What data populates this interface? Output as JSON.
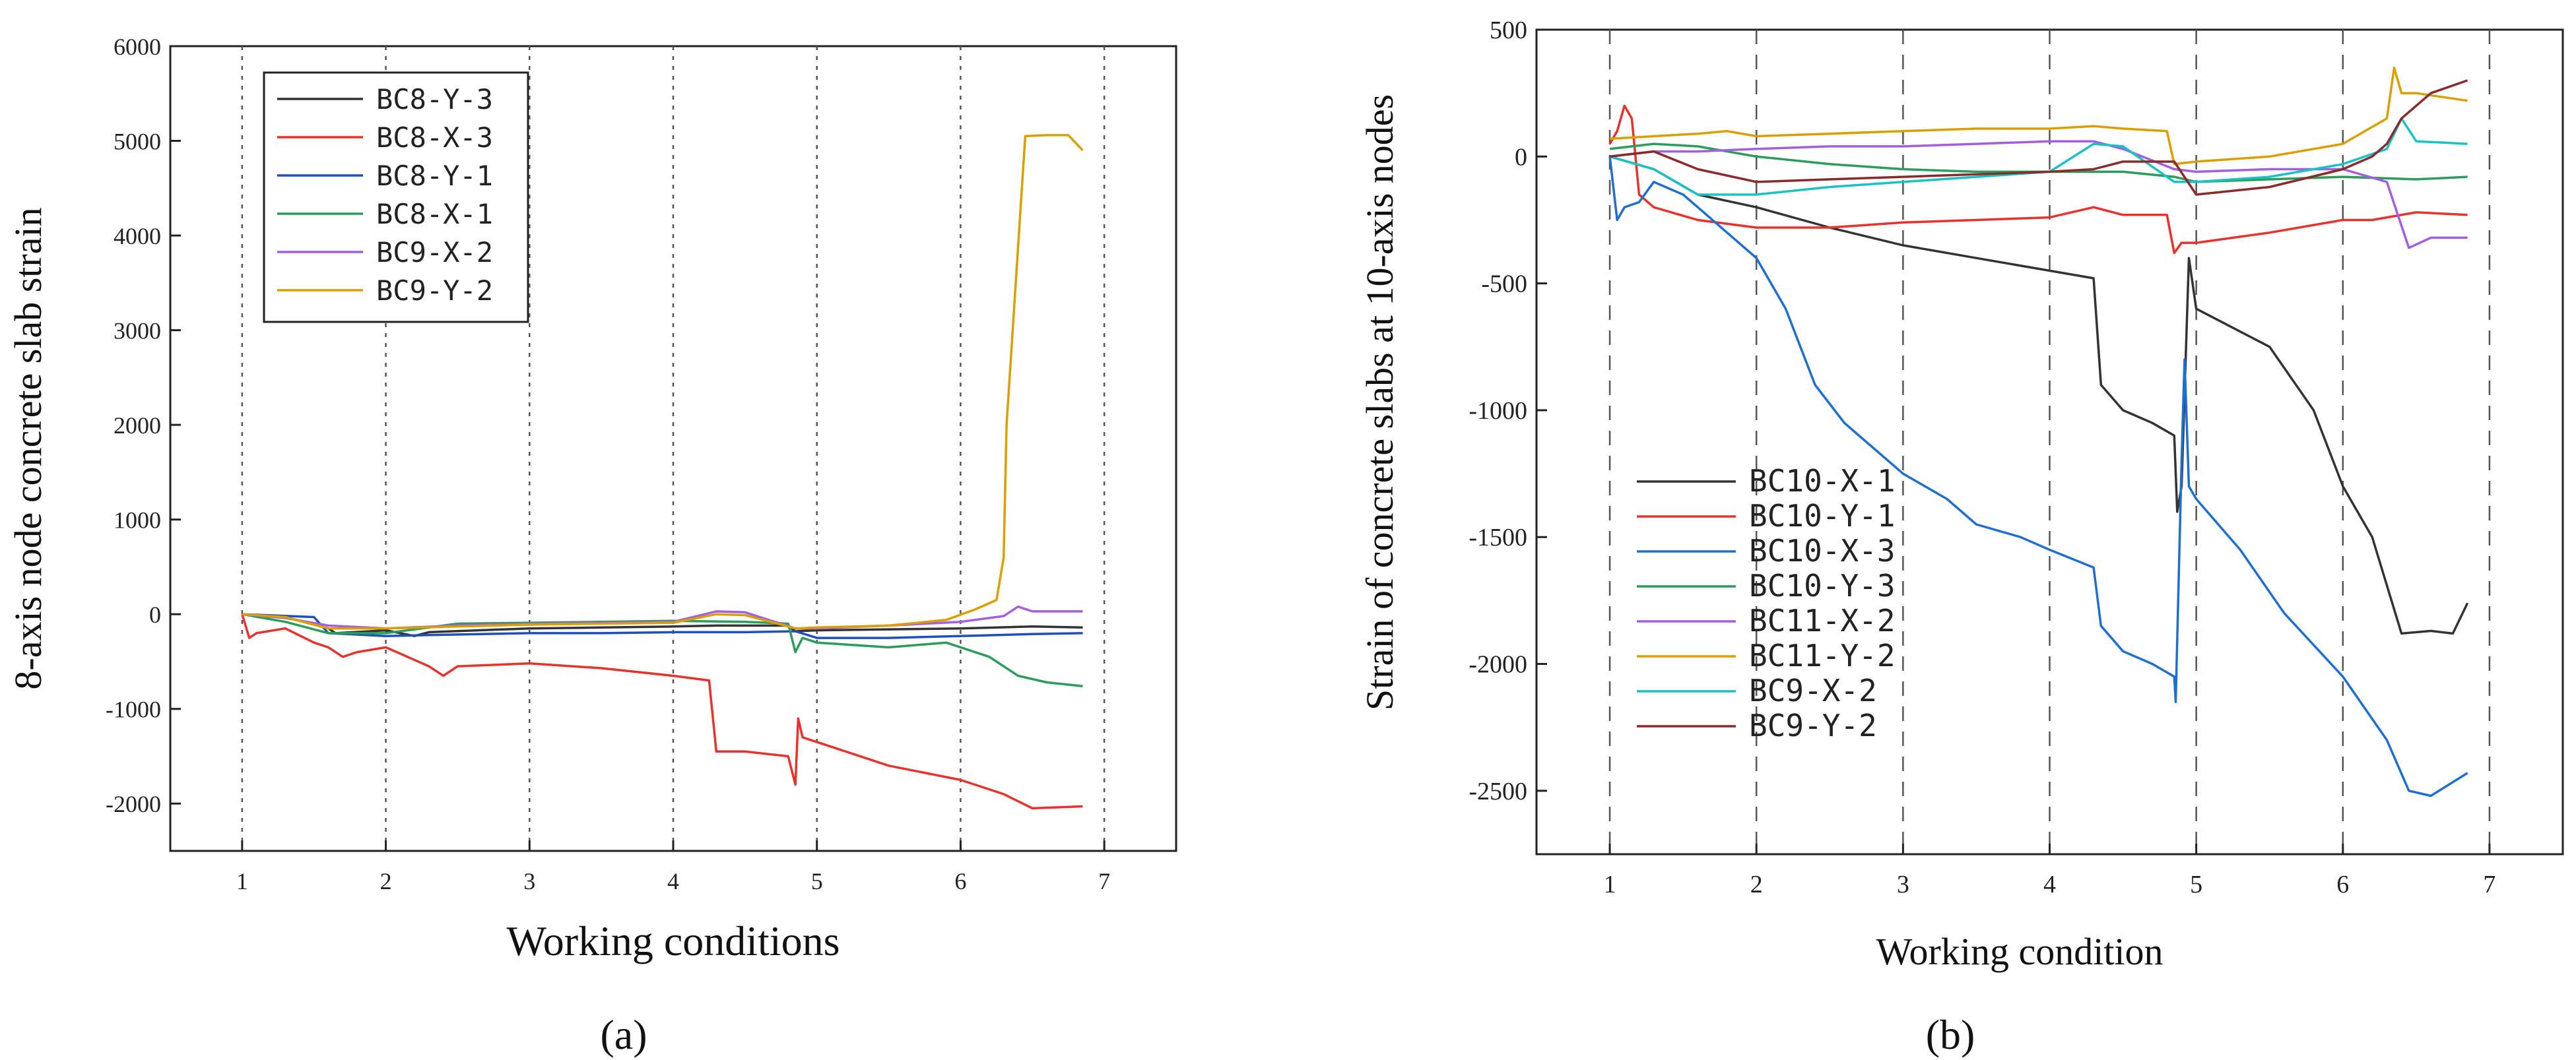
{
  "figure": {
    "labels": [
      "(a)",
      "(b)"
    ]
  },
  "chart_data": [
    {
      "type": "line",
      "panel_label": "(a)",
      "title": "",
      "xlabel": "Working conditions",
      "ylabel": "8-axis node concrete slab strain",
      "xlim": [
        0.5,
        7.5
      ],
      "ylim": [
        -2500,
        6000
      ],
      "xticks": [
        1,
        2,
        3,
        4,
        5,
        6,
        7
      ],
      "yticks": [
        -2000,
        -1000,
        0,
        1000,
        2000,
        3000,
        4000,
        5000,
        6000
      ],
      "x_grid": "dotted vertical lines at x ticks",
      "legend_position": "top-left",
      "series": [
        {
          "name": "BC8-Y-3",
          "color": "#333333",
          "x": [
            1,
            1.3,
            1.6,
            1.65,
            2,
            2.2,
            2.3,
            3,
            3.5,
            4,
            4.3,
            4.8,
            4.85,
            5,
            5.5,
            6,
            6.5,
            6.85
          ],
          "y": [
            0,
            -30,
            -150,
            -200,
            -170,
            -230,
            -190,
            -150,
            -140,
            -130,
            -120,
            -120,
            -180,
            -170,
            -160,
            -150,
            -130,
            -140
          ]
        },
        {
          "name": "BC8-X-3",
          "color": "#e8322b",
          "x": [
            1,
            1.05,
            1.1,
            1.3,
            1.5,
            1.6,
            1.7,
            1.8,
            2,
            2.3,
            2.4,
            2.5,
            3,
            3.5,
            4,
            4.25,
            4.3,
            4.5,
            4.8,
            4.85,
            4.87,
            4.9,
            5,
            5.5,
            6,
            6.3,
            6.5,
            6.85
          ],
          "y": [
            0,
            -250,
            -200,
            -150,
            -300,
            -350,
            -450,
            -400,
            -350,
            -550,
            -650,
            -550,
            -520,
            -570,
            -650,
            -700,
            -1450,
            -1450,
            -1500,
            -1800,
            -1100,
            -1300,
            -1350,
            -1600,
            -1750,
            -1900,
            -2050,
            -2030
          ]
        },
        {
          "name": "BC8-Y-1",
          "color": "#1f4fbf",
          "x": [
            1,
            1.5,
            1.6,
            2,
            2.3,
            3,
            3.5,
            4,
            4.5,
            4.85,
            5,
            5.5,
            6,
            6.5,
            6.85
          ],
          "y": [
            0,
            -30,
            -200,
            -230,
            -220,
            -200,
            -200,
            -190,
            -190,
            -180,
            -250,
            -250,
            -230,
            -210,
            -200
          ]
        },
        {
          "name": "BC8-X-1",
          "color": "#2a9d5a",
          "x": [
            1,
            1.3,
            1.6,
            2,
            2.5,
            3,
            3.5,
            4,
            4.5,
            4.8,
            4.85,
            4.9,
            5,
            5.5,
            5.9,
            6.2,
            6.4,
            6.6,
            6.85
          ],
          "y": [
            0,
            -80,
            -200,
            -200,
            -100,
            -90,
            -80,
            -70,
            -80,
            -100,
            -400,
            -250,
            -300,
            -350,
            -300,
            -450,
            -650,
            -720,
            -760
          ]
        },
        {
          "name": "BC9-X-2",
          "color": "#a35fe0",
          "x": [
            1,
            1.3,
            1.6,
            2,
            2.5,
            3,
            3.5,
            4,
            4.3,
            4.5,
            4.85,
            5,
            5.5,
            6,
            6.3,
            6.4,
            6.5,
            6.85
          ],
          "y": [
            0,
            -40,
            -120,
            -150,
            -120,
            -100,
            -90,
            -80,
            30,
            20,
            -150,
            -150,
            -120,
            -80,
            -20,
            80,
            30,
            30
          ]
        },
        {
          "name": "BC9-Y-2",
          "color": "#d9a000",
          "x": [
            1,
            1.3,
            1.6,
            2,
            2.5,
            3,
            3.5,
            4,
            4.3,
            4.5,
            4.85,
            5,
            5.5,
            5.9,
            6.1,
            6.25,
            6.3,
            6.32,
            6.45,
            6.6,
            6.75,
            6.85
          ],
          "y": [
            0,
            -30,
            -150,
            -150,
            -130,
            -110,
            -100,
            -90,
            0,
            -10,
            -150,
            -140,
            -120,
            -60,
            50,
            150,
            600,
            2000,
            5050,
            5060,
            5060,
            4900
          ]
        }
      ]
    },
    {
      "type": "line",
      "panel_label": "(b)",
      "title": "",
      "xlabel": "Working condition",
      "ylabel": "Strain of concrete slabs at 10-axis nodes",
      "xlim": [
        0.5,
        7.5
      ],
      "ylim": [
        -2750,
        500
      ],
      "xticks": [
        1,
        2,
        3,
        4,
        5,
        6,
        7
      ],
      "yticks": [
        -2500,
        -2000,
        -1500,
        -1000,
        -500,
        0,
        500
      ],
      "x_grid": "dashed vertical lines at x ticks",
      "legend_position": "bottom-left",
      "series": [
        {
          "name": "BC10-X-1",
          "color": "#333333",
          "x": [
            1,
            1.3,
            1.6,
            2,
            2.5,
            3,
            3.5,
            4,
            4.3,
            4.35,
            4.5,
            4.7,
            4.85,
            4.87,
            4.9,
            4.95,
            5,
            5.5,
            5.8,
            6,
            6.2,
            6.4,
            6.6,
            6.75,
            6.85
          ],
          "y": [
            0,
            -50,
            -150,
            -200,
            -280,
            -350,
            -400,
            -450,
            -480,
            -900,
            -1000,
            -1050,
            -1100,
            -1400,
            -1300,
            -400,
            -600,
            -750,
            -1000,
            -1300,
            -1500,
            -1880,
            -1870,
            -1880,
            -1760
          ]
        },
        {
          "name": "BC10-Y-1",
          "color": "#e8322b",
          "x": [
            1,
            1.05,
            1.1,
            1.15,
            1.2,
            1.3,
            1.6,
            2,
            2.5,
            3,
            3.5,
            4,
            4.3,
            4.5,
            4.8,
            4.85,
            4.9,
            5,
            5.5,
            6,
            6.2,
            6.5,
            6.85
          ],
          "y": [
            50,
            100,
            200,
            150,
            -150,
            -200,
            -250,
            -280,
            -280,
            -260,
            -250,
            -240,
            -200,
            -230,
            -230,
            -380,
            -340,
            -340,
            -300,
            -250,
            -250,
            -220,
            -230
          ]
        },
        {
          "name": "BC10-X-3",
          "color": "#1f6fd1",
          "x": [
            1,
            1.05,
            1.1,
            1.2,
            1.3,
            1.5,
            1.6,
            1.8,
            2,
            2.2,
            2.4,
            2.6,
            3,
            3.3,
            3.5,
            3.8,
            4,
            4.3,
            4.35,
            4.5,
            4.7,
            4.85,
            4.86,
            4.9,
            4.92,
            4.95,
            5,
            5.3,
            5.6,
            6,
            6.3,
            6.45,
            6.6,
            6.85
          ],
          "y": [
            0,
            -250,
            -200,
            -180,
            -100,
            -150,
            -200,
            -300,
            -400,
            -600,
            -900,
            -1050,
            -1250,
            -1350,
            -1450,
            -1500,
            -1550,
            -1620,
            -1850,
            -1950,
            -2000,
            -2050,
            -2150,
            -1200,
            -800,
            -1300,
            -1350,
            -1550,
            -1800,
            -2050,
            -2300,
            -2500,
            -2520,
            -2430
          ]
        },
        {
          "name": "BC10-Y-3",
          "color": "#2a9d5a",
          "x": [
            1,
            1.3,
            1.6,
            2,
            2.5,
            3,
            3.5,
            4,
            4.5,
            4.85,
            5,
            5.5,
            6,
            6.5,
            6.85
          ],
          "y": [
            30,
            50,
            40,
            0,
            -30,
            -50,
            -60,
            -60,
            -60,
            -80,
            -100,
            -90,
            -80,
            -90,
            -80
          ]
        },
        {
          "name": "BC11-X-2",
          "color": "#a35fe0",
          "x": [
            1,
            1.3,
            1.6,
            2,
            2.5,
            3,
            3.5,
            4,
            4.3,
            4.5,
            4.85,
            5,
            5.5,
            6,
            6.3,
            6.45,
            6.6,
            6.85
          ],
          "y": [
            0,
            20,
            20,
            30,
            40,
            40,
            50,
            60,
            60,
            30,
            -50,
            -60,
            -50,
            -50,
            -100,
            -360,
            -320,
            -320
          ]
        },
        {
          "name": "BC11-Y-2",
          "color": "#d9a000",
          "x": [
            1,
            1.3,
            1.6,
            1.8,
            2,
            2.5,
            3,
            3.5,
            4,
            4.3,
            4.5,
            4.8,
            4.85,
            5,
            5.5,
            6,
            6.3,
            6.35,
            6.4,
            6.5,
            6.85
          ],
          "y": [
            70,
            80,
            90,
            100,
            80,
            90,
            100,
            110,
            110,
            120,
            110,
            100,
            -30,
            -20,
            0,
            50,
            150,
            350,
            250,
            250,
            220
          ]
        },
        {
          "name": "BC9-X-2",
          "color": "#19c3c3",
          "x": [
            1,
            1.3,
            1.6,
            2,
            2.5,
            3,
            3.5,
            4,
            4.3,
            4.5,
            4.85,
            5,
            5.5,
            6,
            6.3,
            6.4,
            6.5,
            6.85
          ],
          "y": [
            0,
            -50,
            -150,
            -150,
            -120,
            -100,
            -80,
            -60,
            50,
            40,
            -100,
            -100,
            -80,
            -30,
            30,
            150,
            60,
            50
          ]
        },
        {
          "name": "BC9-Y-2",
          "color": "#8b2a2a",
          "x": [
            1,
            1.3,
            1.6,
            2,
            2.5,
            3,
            3.5,
            4,
            4.3,
            4.5,
            4.85,
            5,
            5.5,
            6,
            6.2,
            6.3,
            6.4,
            6.6,
            6.85
          ],
          "y": [
            0,
            20,
            -50,
            -100,
            -90,
            -80,
            -70,
            -60,
            -50,
            -20,
            -20,
            -150,
            -120,
            -50,
            0,
            50,
            150,
            250,
            300
          ]
        }
      ]
    }
  ]
}
